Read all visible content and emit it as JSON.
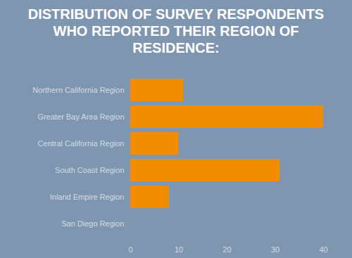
{
  "chart_data": {
    "type": "bar",
    "title": "DISTRIBUTION OF SURVEY RESPONDENTS WHO REPORTED THEIR REGION OF RESIDENCE:",
    "orientation": "horizontal",
    "categories": [
      "Northern California Region",
      "Greater Bay Area Region",
      "Central California Region",
      "South Coast Region",
      "Inland Empire Region",
      "San Diego Region"
    ],
    "values": [
      11,
      40,
      10,
      31,
      8,
      0
    ],
    "color": "#f28c00",
    "xlim": [
      0,
      40
    ],
    "xticks": [
      0,
      10,
      20,
      30,
      40
    ],
    "grid": false
  }
}
